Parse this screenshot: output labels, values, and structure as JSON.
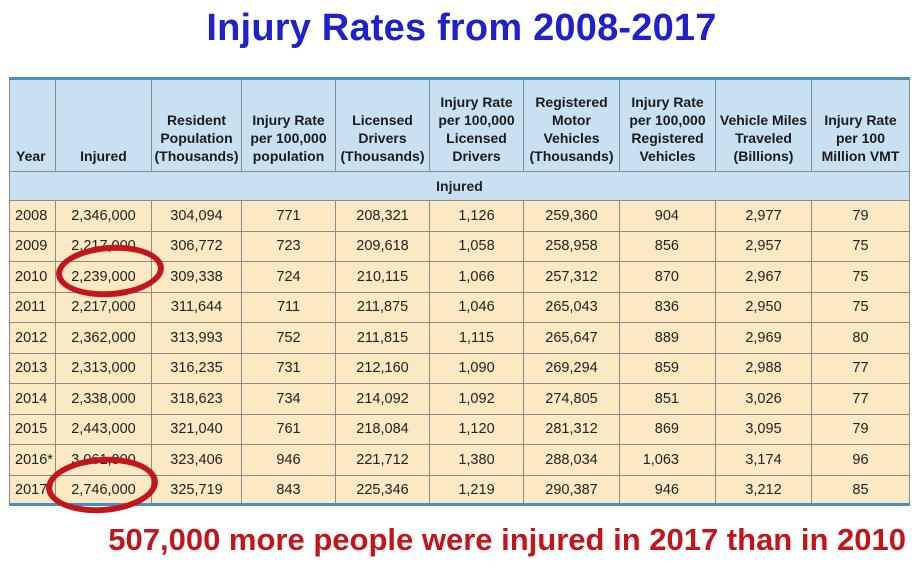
{
  "title": "Injury Rates from 2008-2017",
  "table": {
    "headers": [
      "Year",
      "Injured",
      "Resident Population (Thousands)",
      "Injury Rate per 100,000 population",
      "Licensed Drivers (Thousands)",
      "Injury Rate per 100,000 Licensed Drivers",
      "Registered Motor Vehicles (Thousands)",
      "Injury Rate per 100,000 Registered Vehicles",
      "Vehicle Miles Traveled (Billions)",
      "Injury Rate per 100 Million VMT"
    ],
    "section_label": "Injured",
    "rows": [
      [
        "2008",
        "2,346,000",
        "304,094",
        "771",
        "208,321",
        "1,126",
        "259,360",
        "904",
        "2,977",
        "79"
      ],
      [
        "2009",
        "2,217,000",
        "306,772",
        "723",
        "209,618",
        "1,058",
        "258,958",
        "856",
        "2,957",
        "75"
      ],
      [
        "2010",
        "2,239,000",
        "309,338",
        "724",
        "210,115",
        "1,066",
        "257,312",
        "870",
        "2,967",
        "75"
      ],
      [
        "2011",
        "2,217,000",
        "311,644",
        "711",
        "211,875",
        "1,046",
        "265,043",
        "836",
        "2,950",
        "75"
      ],
      [
        "2012",
        "2,362,000",
        "313,993",
        "752",
        "211,815",
        "1,115",
        "265,647",
        "889",
        "2,969",
        "80"
      ],
      [
        "2013",
        "2,313,000",
        "316,235",
        "731",
        "212,160",
        "1,090",
        "269,294",
        "859",
        "2,988",
        "77"
      ],
      [
        "2014",
        "2,338,000",
        "318,623",
        "734",
        "214,092",
        "1,092",
        "274,805",
        "851",
        "3,026",
        "77"
      ],
      [
        "2015",
        "2,443,000",
        "321,040",
        "761",
        "218,084",
        "1,120",
        "281,312",
        "869",
        "3,095",
        "79"
      ],
      [
        "2016*",
        "3,061,000",
        "323,406",
        "946",
        "221,712",
        "1,380",
        "288,034",
        "1,063",
        "3,174",
        "96"
      ],
      [
        "2017*",
        "2,746,000",
        "325,719",
        "843",
        "225,346",
        "1,219",
        "290,387",
        "946",
        "3,212",
        "85"
      ]
    ]
  },
  "annotation": "507,000 more people were injured in 2017 than in 2010",
  "highlight_color": "#c3161c",
  "title_color": "#1f22c8"
}
